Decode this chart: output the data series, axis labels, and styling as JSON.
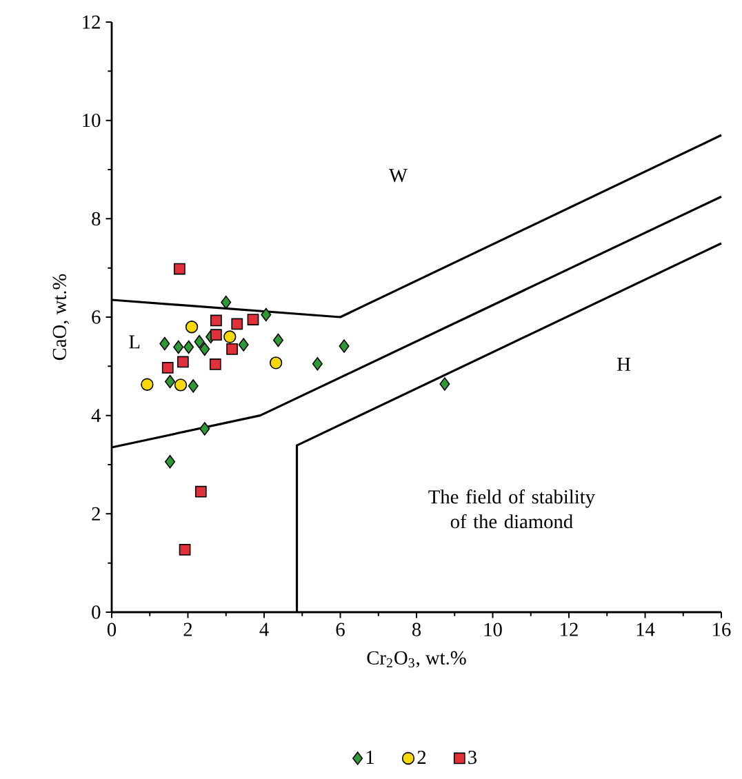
{
  "chart_data": {
    "type": "scatter",
    "xlabel": "Cr$_{2}$O$_{3}$, wt.%",
    "ylabel": "CaO, wt.%",
    "xlim": [
      0,
      16
    ],
    "ylim": [
      0,
      12
    ],
    "xticks": [
      0,
      2,
      4,
      6,
      8,
      10,
      12,
      14,
      16
    ],
    "yticks": [
      0,
      2,
      4,
      6,
      8,
      10,
      12
    ],
    "grid": false,
    "legend": "bottom",
    "series": [
      {
        "name": "1",
        "marker": "diamond",
        "color": "#2e9a35",
        "x": [
          3.0,
          4.05,
          1.39,
          4.37,
          6.1,
          5.4,
          8.74,
          2.44,
          1.53,
          2.02,
          2.44,
          2.14,
          1.75,
          3.46,
          1.53,
          2.3,
          2.6
        ],
        "values": [
          6.3,
          6.05,
          5.46,
          5.53,
          5.41,
          5.05,
          4.64,
          3.73,
          3.06,
          5.39,
          5.35,
          4.6,
          5.39,
          5.44,
          4.69,
          5.5,
          5.6
        ]
      },
      {
        "name": "2",
        "marker": "circle",
        "color": "#f5d90a",
        "x": [
          2.1,
          3.1,
          4.31,
          0.93,
          1.81
        ],
        "values": [
          5.8,
          5.6,
          5.07,
          4.63,
          4.62
        ]
      },
      {
        "name": "3",
        "marker": "square",
        "color": "#e0303a",
        "x": [
          2.74,
          3.29,
          3.71,
          2.74,
          3.16,
          1.87,
          1.47,
          2.72,
          2.34,
          1.92,
          1.78
        ],
        "values": [
          5.93,
          5.86,
          5.95,
          5.64,
          5.35,
          5.09,
          4.97,
          5.04,
          2.45,
          1.27,
          6.98
        ]
      },
      {
        "type": "line",
        "marker": "none",
        "color": "#000000",
        "x": [
          0,
          6.0,
          16
        ],
        "values": [
          6.35,
          6.0,
          9.7
        ]
      },
      {
        "type": "line",
        "marker": "none",
        "color": "#000000",
        "x": [
          0,
          3.9,
          16
        ],
        "values": [
          3.35,
          4.0,
          8.45
        ]
      },
      {
        "type": "line",
        "marker": "none",
        "color": "#000000",
        "x": [
          4.86,
          4.86,
          16
        ],
        "values": [
          0,
          3.39,
          7.5
        ]
      }
    ],
    "annotations": [
      "W",
      "L",
      "H",
      "The field of stability of the diamond"
    ]
  }
}
